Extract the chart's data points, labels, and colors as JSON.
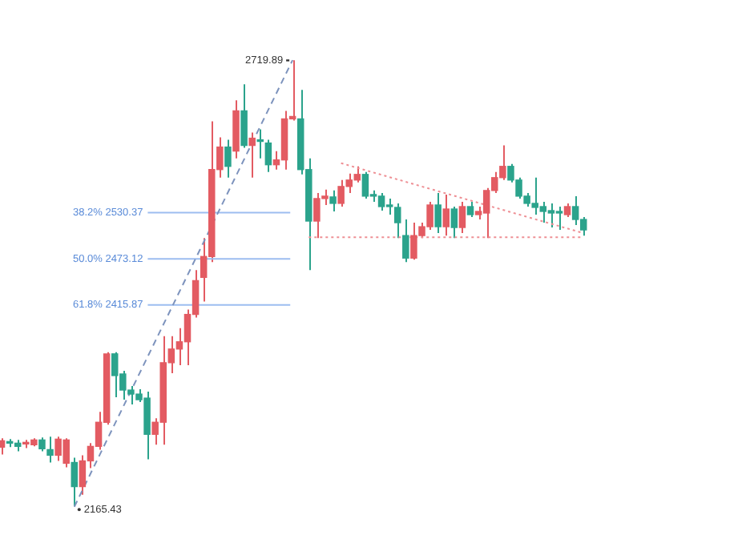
{
  "chart_data": {
    "type": "candlestick",
    "categories": [
      null,
      null,
      null,
      null,
      null,
      null,
      null,
      null,
      null,
      null,
      null,
      null,
      null,
      null,
      null,
      null,
      null,
      null,
      null,
      null,
      null,
      null,
      null,
      null,
      null,
      null,
      null,
      null,
      null,
      null,
      null,
      null,
      null,
      null,
      null,
      null,
      null,
      null,
      null,
      null,
      null,
      null,
      null,
      null,
      null,
      null,
      null,
      null,
      null,
      null,
      null,
      null,
      null,
      null,
      null,
      null,
      null,
      null,
      null,
      null,
      null,
      null,
      null,
      null,
      null,
      null,
      null,
      null,
      null,
      null,
      null,
      null,
      null
    ],
    "ohlc": [
      [
        2239,
        2250,
        2230,
        2247
      ],
      [
        2246,
        2249,
        2239,
        2244
      ],
      [
        2244,
        2248,
        2234,
        2240
      ],
      [
        2243,
        2248,
        2238,
        2245
      ],
      [
        2242,
        2250,
        2240,
        2248
      ],
      [
        2248,
        2251,
        2234,
        2237
      ],
      [
        2236,
        2252,
        2220,
        2229
      ],
      [
        2229,
        2252,
        2222,
        2249
      ],
      [
        2219,
        2250,
        2214,
        2248
      ],
      [
        2220,
        2226,
        2165.43,
        2190
      ],
      [
        2190,
        2229,
        2180,
        2222
      ],
      [
        2222,
        2244,
        2213,
        2240
      ],
      [
        2240,
        2283,
        2236,
        2270
      ],
      [
        2270,
        2357,
        2267,
        2355
      ],
      [
        2355,
        2357,
        2301,
        2328
      ],
      [
        2330,
        2334,
        2298,
        2310
      ],
      [
        2310,
        2315,
        2292,
        2305
      ],
      [
        2305,
        2311,
        2295,
        2298
      ],
      [
        2300,
        2308,
        2224,
        2255
      ],
      [
        2255,
        2275,
        2242,
        2270
      ],
      [
        2270,
        2377,
        2242,
        2344
      ],
      [
        2344,
        2377,
        2331,
        2361
      ],
      [
        2361,
        2387,
        2341,
        2370
      ],
      [
        2370,
        2410,
        2341,
        2404
      ],
      [
        2404,
        2459,
        2400,
        2446
      ],
      [
        2450,
        2499,
        2420,
        2476
      ],
      [
        2476,
        2644,
        2469,
        2584
      ],
      [
        2584,
        2624,
        2574,
        2612
      ],
      [
        2612,
        2621,
        2574,
        2588
      ],
      [
        2607,
        2670,
        2598,
        2657
      ],
      [
        2657,
        2690,
        2611,
        2614
      ],
      [
        2614,
        2630,
        2574,
        2623
      ],
      [
        2621,
        2634,
        2598,
        2619
      ],
      [
        2617,
        2621,
        2581,
        2590
      ],
      [
        2590,
        2607,
        2584,
        2596
      ],
      [
        2596,
        2657,
        2584,
        2647
      ],
      [
        2647,
        2719.89,
        2645,
        2650
      ],
      [
        2647,
        2683,
        2578,
        2584
      ],
      [
        2584,
        2598,
        2459,
        2520
      ],
      [
        2520,
        2555,
        2499,
        2548
      ],
      [
        2548,
        2559,
        2540,
        2551
      ],
      [
        2550,
        2558,
        2532,
        2542
      ],
      [
        2542,
        2571,
        2538,
        2563
      ],
      [
        2563,
        2579,
        2555,
        2571
      ],
      [
        2571,
        2588,
        2568,
        2578
      ],
      [
        2578,
        2581,
        2548,
        2551
      ],
      [
        2553,
        2558,
        2544,
        2551
      ],
      [
        2551,
        2555,
        2533,
        2538
      ],
      [
        2540,
        2548,
        2528,
        2538
      ],
      [
        2537,
        2542,
        2499,
        2518
      ],
      [
        2502,
        2522,
        2469,
        2474
      ],
      [
        2474,
        2518,
        2472,
        2502
      ],
      [
        2502,
        2518,
        2499,
        2513
      ],
      [
        2513,
        2544,
        2509,
        2540
      ],
      [
        2540,
        2555,
        2505,
        2513
      ],
      [
        2513,
        2553,
        2502,
        2535
      ],
      [
        2535,
        2538,
        2499,
        2512
      ],
      [
        2512,
        2544,
        2505,
        2538
      ],
      [
        2538,
        2544,
        2525,
        2528
      ],
      [
        2528,
        2538,
        2522,
        2532
      ],
      [
        2530,
        2561,
        2499,
        2558
      ],
      [
        2558,
        2581,
        2555,
        2574
      ],
      [
        2574,
        2614,
        2571,
        2588
      ],
      [
        2588,
        2591,
        2568,
        2571
      ],
      [
        2571,
        2574,
        2548,
        2551
      ],
      [
        2551,
        2555,
        2538,
        2542
      ],
      [
        2542,
        2574,
        2528,
        2537
      ],
      [
        2538,
        2544,
        2518,
        2532
      ],
      [
        2533,
        2542,
        2512,
        2530
      ],
      [
        2532,
        2538,
        2509,
        2530
      ],
      [
        2528,
        2542,
        2525,
        2538
      ],
      [
        2538,
        2551,
        2515,
        2522
      ],
      [
        2522,
        2525,
        2502,
        2509
      ]
    ],
    "colors": [
      "#e35b62",
      "#2ba38c",
      "#2ba38c",
      "#e35b62",
      "#e35b62",
      "#2ba38c",
      "#2ba38c",
      "#e35b62",
      "#e35b62",
      "#2ba38c",
      "#e35b62",
      "#e35b62",
      "#e35b62",
      "#e35b62",
      "#2ba38c",
      "#2ba38c",
      "#2ba38c",
      "#2ba38c",
      "#2ba38c",
      "#e35b62",
      "#e35b62",
      "#e35b62",
      "#e35b62",
      "#e35b62",
      "#e35b62",
      "#e35b62",
      "#e35b62",
      "#e35b62",
      "#2ba38c",
      "#e35b62",
      "#2ba38c",
      "#e35b62",
      "#2ba38c",
      "#2ba38c",
      "#e35b62",
      "#e35b62",
      "#e35b62",
      "#2ba38c",
      "#2ba38c",
      "#e35b62",
      "#e35b62",
      "#2ba38c",
      "#e35b62",
      "#e35b62",
      "#e35b62",
      "#2ba38c",
      "#2ba38c",
      "#2ba38c",
      "#2ba38c",
      "#2ba38c",
      "#2ba38c",
      "#e35b62",
      "#e35b62",
      "#e35b62",
      "#2ba38c",
      "#e35b62",
      "#2ba38c",
      "#e35b62",
      "#2ba38c",
      "#e35b62",
      "#e35b62",
      "#e35b62",
      "#e35b62",
      "#2ba38c",
      "#2ba38c",
      "#2ba38c",
      "#2ba38c",
      "#2ba38c",
      "#2ba38c",
      "#2ba38c",
      "#e35b62",
      "#2ba38c",
      "#2ba38c"
    ],
    "series": [
      {
        "type": "line",
        "color": "#7d93bd",
        "line_style": "dashed",
        "values": [
          null,
          null,
          null,
          null,
          null,
          null,
          null,
          null,
          null,
          2165,
          null,
          null,
          null,
          null,
          null,
          null,
          null,
          null,
          null,
          null,
          null,
          null,
          null,
          null,
          null,
          null,
          null,
          null,
          null,
          null,
          null,
          null,
          null,
          null,
          null,
          null,
          2720,
          null,
          null,
          null,
          null,
          null,
          null,
          null,
          null,
          null,
          null,
          null,
          null,
          null,
          null,
          null,
          null,
          null,
          null,
          null,
          null,
          null,
          null,
          null,
          null,
          null,
          null,
          null,
          null,
          null,
          null,
          null,
          null,
          null,
          null,
          null,
          null
        ]
      },
      {
        "type": "line",
        "color": "#ee8f94",
        "line_style": "dotted",
        "values": [
          null,
          null,
          null,
          null,
          null,
          null,
          null,
          null,
          null,
          null,
          null,
          null,
          null,
          null,
          null,
          null,
          null,
          null,
          null,
          null,
          null,
          null,
          null,
          null,
          null,
          null,
          null,
          null,
          null,
          null,
          null,
          null,
          null,
          null,
          null,
          null,
          null,
          null,
          null,
          null,
          null,
          null,
          2592,
          null,
          null,
          null,
          null,
          null,
          null,
          null,
          null,
          null,
          null,
          null,
          null,
          null,
          null,
          null,
          null,
          null,
          null,
          null,
          null,
          null,
          null,
          null,
          null,
          null,
          null,
          null,
          null,
          null,
          2505
        ]
      },
      {
        "type": "line",
        "color": "#ee8f94",
        "line_style": "dotted",
        "values": [
          null,
          null,
          null,
          null,
          null,
          null,
          null,
          null,
          null,
          null,
          null,
          null,
          null,
          null,
          null,
          null,
          null,
          null,
          null,
          null,
          null,
          null,
          null,
          null,
          null,
          null,
          null,
          null,
          null,
          null,
          null,
          null,
          null,
          null,
          null,
          null,
          null,
          null,
          2500,
          null,
          null,
          null,
          null,
          null,
          null,
          null,
          null,
          null,
          null,
          null,
          null,
          null,
          null,
          null,
          null,
          null,
          null,
          null,
          null,
          null,
          null,
          null,
          null,
          null,
          null,
          null,
          null,
          null,
          null,
          null,
          null,
          null,
          2500
        ]
      }
    ],
    "ref_lines": [
      {
        "axis": "y",
        "value": 2530.37,
        "label": "38.2% 2530.37",
        "color": "#9dbdf0"
      },
      {
        "axis": "y",
        "value": 2473.12,
        "label": "50.0% 2473.12",
        "color": "#9dbdf0"
      },
      {
        "axis": "y",
        "value": 2415.87,
        "label": "61.8% 2415.87",
        "color": "#9dbdf0"
      }
    ],
    "annotations": [
      "2719.89",
      "2165.43"
    ],
    "tick_labels": false,
    "legend": false
  }
}
